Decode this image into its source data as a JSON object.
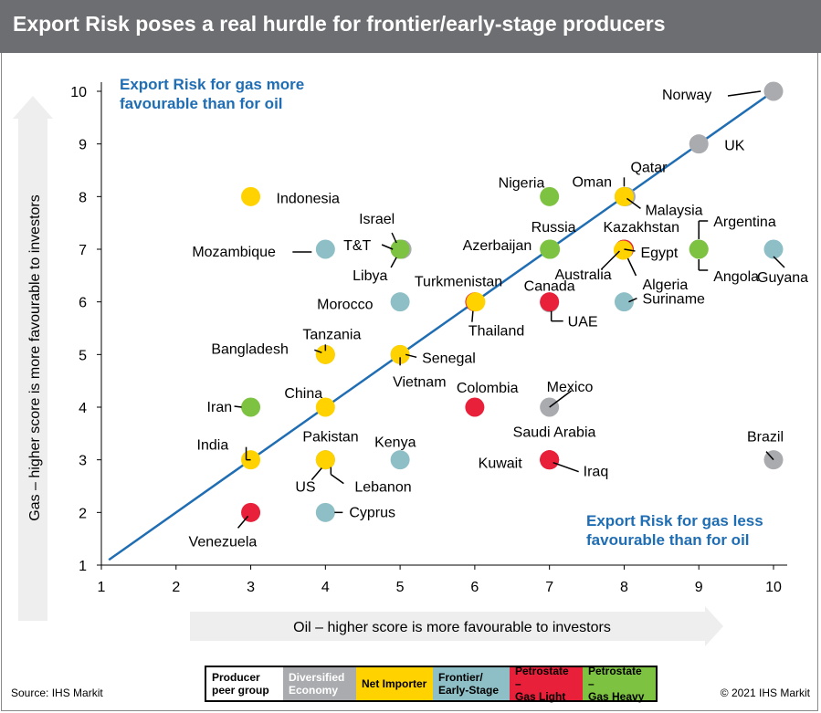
{
  "title": "Export Risk poses a real hurdle for frontier/early-stage producers",
  "source": "Source: IHS Markit",
  "copyright": "© 2021 IHS Markit",
  "colors": {
    "Diversified Economy": "#a9abae",
    "Net Importer": "#ffd200",
    "Frontier/ Early-Stage": "#8ebfc7",
    "Petrostate – Gas Light": "#e8203a",
    "Petrostate – Gas Heavy": "#7ec242",
    "accent_text": "#1f6db3",
    "diagonal_line": "#1f6db3"
  },
  "legend": {
    "header": "Producer\npeer group",
    "items": [
      {
        "label": "Diversified\nEconomy",
        "group": "Diversified Economy",
        "text_color": "#ffffff"
      },
      {
        "label": "Net Importer",
        "group": "Net Importer",
        "text_color": "#000000"
      },
      {
        "label": "Frontier/\nEarly-Stage",
        "group": "Frontier/ Early-Stage",
        "text_color": "#000000"
      },
      {
        "label": "Petrostate –\nGas Light",
        "group": "Petrostate – Gas Light",
        "text_color": "#000000"
      },
      {
        "label": "Petrostate –\nGas Heavy",
        "group": "Petrostate – Gas Heavy",
        "text_color": "#000000"
      }
    ]
  },
  "chart_data": {
    "type": "scatter",
    "xlabel": "Oil – higher score is more favourable to investors",
    "ylabel": "Gas – higher score is more favourable to investors",
    "xlim": [
      1,
      10
    ],
    "ylim": [
      1,
      10
    ],
    "xticks": [
      1,
      2,
      3,
      4,
      5,
      6,
      7,
      8,
      9,
      10
    ],
    "yticks": [
      1,
      2,
      3,
      4,
      5,
      6,
      7,
      8,
      9,
      10
    ],
    "grid": false,
    "diagonal": {
      "from": [
        1.1,
        1.1
      ],
      "to": [
        10,
        10
      ]
    },
    "annotations": [
      "Export Risk for gas more\nfavourable than for oil",
      "Export Risk for gas less\nfavourable than for oil"
    ],
    "points": [
      {
        "label": "Norway",
        "x": 10,
        "y": 10,
        "group": "Diversified Economy"
      },
      {
        "label": "UK",
        "x": 9,
        "y": 9,
        "group": "Diversified Economy"
      },
      {
        "label": "Indonesia",
        "x": 3,
        "y": 8,
        "group": "Net Importer"
      },
      {
        "label": "Nigeria",
        "x": 7,
        "y": 8,
        "group": "Petrostate – Gas Heavy"
      },
      {
        "label": "Qatar",
        "x": 8,
        "y": 8,
        "group": "Petrostate – Gas Heavy"
      },
      {
        "label": "Oman",
        "x": 8,
        "y": 8,
        "group": "Net Importer"
      },
      {
        "label": "Malaysia",
        "x": 8,
        "y": 8,
        "group": "Diversified Economy"
      },
      {
        "label": "Mozambique",
        "x": 4,
        "y": 7,
        "group": "Frontier/ Early-Stage"
      },
      {
        "label": "Israel",
        "x": 5,
        "y": 7,
        "group": "Petrostate – Gas Heavy"
      },
      {
        "label": "T&T",
        "x": 5,
        "y": 7,
        "group": "Diversified Economy"
      },
      {
        "label": "Libya",
        "x": 5,
        "y": 7,
        "group": "Diversified Economy"
      },
      {
        "label": "Russia",
        "x": 7,
        "y": 7,
        "group": "Petrostate – Gas Heavy"
      },
      {
        "label": "Azerbaijan",
        "x": 7,
        "y": 7,
        "group": "Petrostate – Gas Heavy"
      },
      {
        "label": "Kazakhstan",
        "x": 8,
        "y": 7,
        "group": "Petrostate – Gas Light"
      },
      {
        "label": "Egypt",
        "x": 8,
        "y": 7,
        "group": "Net Importer"
      },
      {
        "label": "Australia",
        "x": 8,
        "y": 7,
        "group": "Diversified Economy"
      },
      {
        "label": "Algeria",
        "x": 8,
        "y": 7,
        "group": "Petrostate – Gas Heavy"
      },
      {
        "label": "Argentina",
        "x": 9,
        "y": 7,
        "group": "Diversified Economy"
      },
      {
        "label": "Angola",
        "x": 9,
        "y": 7,
        "group": "Petrostate – Gas Heavy"
      },
      {
        "label": "Guyana",
        "x": 10,
        "y": 7,
        "group": "Frontier/ Early-Stage"
      },
      {
        "label": "Morocco",
        "x": 5,
        "y": 6,
        "group": "Frontier/ Early-Stage"
      },
      {
        "label": "Turkmenistan",
        "x": 6,
        "y": 6,
        "group": "Petrostate – Gas Light"
      },
      {
        "label": "Thailand",
        "x": 6,
        "y": 6,
        "group": "Net Importer"
      },
      {
        "label": "Canada",
        "x": 7,
        "y": 6,
        "group": "Diversified Economy"
      },
      {
        "label": "UAE",
        "x": 7,
        "y": 6,
        "group": "Petrostate – Gas Light"
      },
      {
        "label": "Suriname",
        "x": 8,
        "y": 6,
        "group": "Frontier/ Early-Stage"
      },
      {
        "label": "Tanzania",
        "x": 4,
        "y": 5,
        "group": "Frontier/ Early-Stage"
      },
      {
        "label": "Bangladesh",
        "x": 4,
        "y": 5,
        "group": "Net Importer"
      },
      {
        "label": "Senegal",
        "x": 5,
        "y": 5,
        "group": "Frontier/ Early-Stage"
      },
      {
        "label": "Vietnam",
        "x": 5,
        "y": 5,
        "group": "Net Importer"
      },
      {
        "label": "Iran",
        "x": 3,
        "y": 4,
        "group": "Petrostate – Gas Heavy"
      },
      {
        "label": "China",
        "x": 4,
        "y": 4,
        "group": "Net Importer"
      },
      {
        "label": "Colombia",
        "x": 6,
        "y": 4,
        "group": "Petrostate – Gas Light"
      },
      {
        "label": "Mexico",
        "x": 7,
        "y": 4,
        "group": "Diversified Economy"
      },
      {
        "label": "India",
        "x": 3,
        "y": 3,
        "group": "Net Importer"
      },
      {
        "label": "Pakistan",
        "x": 4,
        "y": 3,
        "group": "Net Importer"
      },
      {
        "label": "US",
        "x": 4,
        "y": 3,
        "group": "Diversified Economy"
      },
      {
        "label": "Lebanon",
        "x": 4,
        "y": 3,
        "group": "Frontier/ Early-Stage"
      },
      {
        "label": "Kenya",
        "x": 5,
        "y": 3,
        "group": "Frontier/ Early-Stage"
      },
      {
        "label": "Saudi Arabia",
        "x": 7,
        "y": 3,
        "group": "Petrostate – Gas Light"
      },
      {
        "label": "Kuwait",
        "x": 7,
        "y": 3,
        "group": "Petrostate – Gas Light"
      },
      {
        "label": "Iraq",
        "x": 7,
        "y": 3,
        "group": "Petrostate – Gas Light"
      },
      {
        "label": "Brazil",
        "x": 10,
        "y": 3,
        "group": "Diversified Economy"
      },
      {
        "label": "Venezuela",
        "x": 3,
        "y": 2,
        "group": "Petrostate – Gas Light"
      },
      {
        "label": "Cyprus",
        "x": 4,
        "y": 2,
        "group": "Frontier/ Early-Stage"
      }
    ]
  }
}
